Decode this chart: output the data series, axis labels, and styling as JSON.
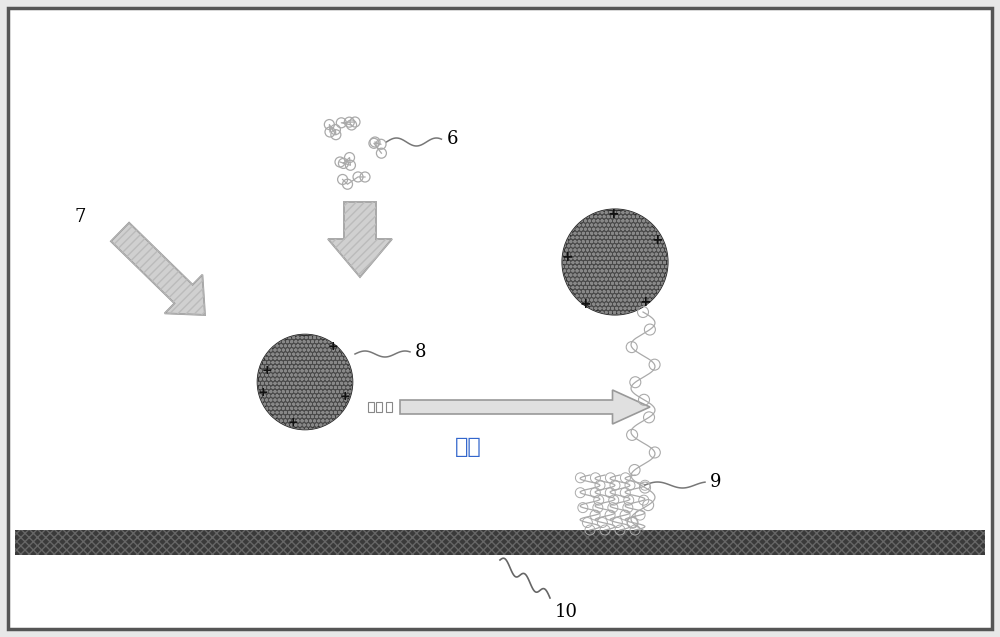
{
  "bg_color": "#e8e8e8",
  "inner_bg": "#ffffff",
  "border_color": "#333333",
  "label_6": "6",
  "label_7": "7",
  "label_8": "8",
  "label_9": "9",
  "label_10": "10",
  "flow_text": "流动",
  "membrane_color": "#555555",
  "bead_color": "#555555",
  "arrow_fill": "#d0d0d0",
  "arrow_edge": "#999999",
  "coil_color": "#999999",
  "plus_color": "#000000",
  "font_size_label": 13,
  "font_size_flow": 16
}
